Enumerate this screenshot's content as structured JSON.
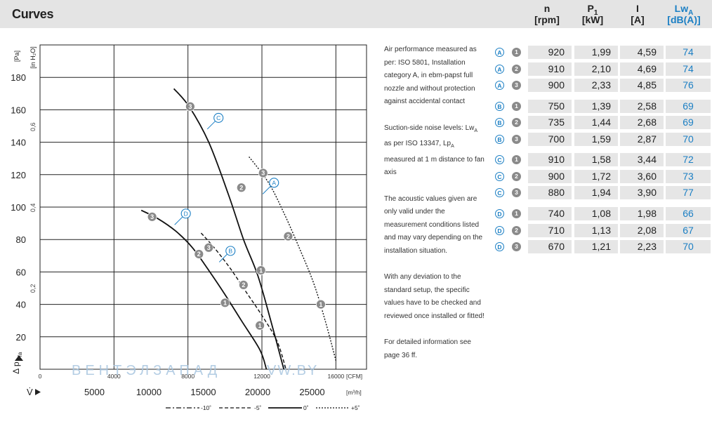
{
  "header": {
    "title": "Curves",
    "columns": [
      {
        "name": "n",
        "unit": "[rpm]",
        "highlight": false
      },
      {
        "name": "P",
        "sub": "1",
        "unit": "[kW]",
        "highlight": false
      },
      {
        "name": "I",
        "unit": "[A]",
        "highlight": false
      },
      {
        "name": "Lw",
        "sub": "A",
        "unit": "[dB(A)]",
        "highlight": true
      }
    ]
  },
  "notes": {
    "paragraphs": [
      "Air performance measured as per: ISO 5801, Installation category A, in ebm-papst full nozzle and without protection against accidental contact",
      "Suction-side noise levels: Lw_A as per ISO 13347, Lp_A measured at 1 m distance to fan axis",
      "The acoustic values given are only valid under the measurement conditions listed and may vary depending on the installation situation.",
      "With any deviation to the standard setup, the specific values have to be checked and reviewed once installed or fitted!",
      "For detailed information see page 36 ff."
    ]
  },
  "table": {
    "rows": [
      {
        "curve": "A",
        "point": "1",
        "n": "920",
        "p1": "1,99",
        "i": "4,59",
        "lwa": "74"
      },
      {
        "curve": "A",
        "point": "2",
        "n": "910",
        "p1": "2,10",
        "i": "4,69",
        "lwa": "74"
      },
      {
        "curve": "A",
        "point": "3",
        "n": "900",
        "p1": "2,33",
        "i": "4,85",
        "lwa": "76"
      },
      {
        "curve": "B",
        "point": "1",
        "n": "750",
        "p1": "1,39",
        "i": "2,58",
        "lwa": "69"
      },
      {
        "curve": "B",
        "point": "2",
        "n": "735",
        "p1": "1,44",
        "i": "2,68",
        "lwa": "69"
      },
      {
        "curve": "B",
        "point": "3",
        "n": "700",
        "p1": "1,59",
        "i": "2,87",
        "lwa": "70"
      },
      {
        "curve": "C",
        "point": "1",
        "n": "910",
        "p1": "1,58",
        "i": "3,44",
        "lwa": "72"
      },
      {
        "curve": "C",
        "point": "2",
        "n": "900",
        "p1": "1,72",
        "i": "3,60",
        "lwa": "73"
      },
      {
        "curve": "C",
        "point": "3",
        "n": "880",
        "p1": "1,94",
        "i": "3,90",
        "lwa": "77"
      },
      {
        "curve": "D",
        "point": "1",
        "n": "740",
        "p1": "1,08",
        "i": "1,98",
        "lwa": "66"
      },
      {
        "curve": "D",
        "point": "2",
        "n": "710",
        "p1": "1,13",
        "i": "2,08",
        "lwa": "67"
      },
      {
        "curve": "D",
        "point": "3",
        "n": "670",
        "p1": "1,21",
        "i": "2,23",
        "lwa": "70"
      }
    ]
  },
  "colors": {
    "accent": "#1b7fc4",
    "header_bg": "#e4e4e4",
    "cell_bg": "#e6e6e6",
    "point_marker": "#8a8a8a",
    "watermark": "#a9c6e0"
  },
  "chart_data": {
    "type": "line",
    "title": "",
    "xlabel": "V̇",
    "x_unit": "[m³/h]",
    "x2_unit": "[CFM]",
    "ylabel": "Δ p_fa",
    "y_unit": "[Pa]",
    "y2_unit": "[in H2O]",
    "xlim": [
      0,
      30000
    ],
    "ylim": [
      0,
      200
    ],
    "x_ticks": [
      {
        "value": 5000,
        "label": "5000"
      },
      {
        "value": 10000,
        "label": "10000"
      },
      {
        "value": 15000,
        "label": "15000"
      },
      {
        "value": 20000,
        "label": "20000"
      },
      {
        "value": 25000,
        "label": "25000"
      }
    ],
    "x2_ticks": [
      {
        "value": 0,
        "label": "0"
      },
      {
        "value": 4000,
        "label": "4000"
      },
      {
        "value": 8000,
        "label": "8000"
      },
      {
        "value": 12000,
        "label": "12000"
      },
      {
        "value": 16000,
        "label": "16000"
      }
    ],
    "y_ticks": [
      {
        "value": 20,
        "label": "20"
      },
      {
        "value": 40,
        "label": "40"
      },
      {
        "value": 60,
        "label": "60"
      },
      {
        "value": 80,
        "label": "80"
      },
      {
        "value": 100,
        "label": "100"
      },
      {
        "value": 120,
        "label": "120"
      },
      {
        "value": 140,
        "label": "140"
      },
      {
        "value": 160,
        "label": "160"
      },
      {
        "value": 180,
        "label": "180"
      }
    ],
    "y2_ticks": [
      {
        "value": 0.2,
        "label": "0,2"
      },
      {
        "value": 0.4,
        "label": "0,4"
      },
      {
        "value": 0.6,
        "label": "0,6"
      }
    ],
    "grid": true,
    "series": [
      {
        "name": "A",
        "style": "dotted",
        "line": [
          [
            19200,
            131
          ],
          [
            21000,
            115
          ],
          [
            22500,
            95
          ],
          [
            24000,
            72
          ],
          [
            25200,
            52
          ],
          [
            26200,
            30
          ],
          [
            27200,
            5
          ]
        ],
        "points": [
          {
            "label": "1",
            "x": 25800,
            "y": 40
          },
          {
            "label": "2",
            "x": 22800,
            "y": 82
          },
          {
            "label": "3",
            "x": 20500,
            "y": 121
          }
        ],
        "label_pos": [
          21500,
          115
        ]
      },
      {
        "name": "B",
        "style": "dashed",
        "line": [
          [
            14800,
            84
          ],
          [
            16000,
            75
          ],
          [
            17500,
            62
          ],
          [
            19000,
            47
          ],
          [
            20500,
            32
          ],
          [
            21800,
            17
          ],
          [
            22600,
            0
          ]
        ],
        "points": [
          {
            "label": "1",
            "x": 20200,
            "y": 27
          },
          {
            "label": "2",
            "x": 18700,
            "y": 52
          },
          {
            "label": "3",
            "x": 15500,
            "y": 75
          }
        ],
        "label_pos": [
          17500,
          73
        ]
      },
      {
        "name": "C",
        "style": "solid",
        "line": [
          [
            12300,
            173
          ],
          [
            13700,
            162
          ],
          [
            15500,
            140
          ],
          [
            17300,
            108
          ],
          [
            18700,
            80
          ],
          [
            20000,
            58
          ],
          [
            21200,
            30
          ],
          [
            22400,
            0
          ]
        ],
        "points": [
          {
            "label": "1",
            "x": 20300,
            "y": 61
          },
          {
            "label": "2",
            "x": 18500,
            "y": 112
          },
          {
            "label": "3",
            "x": 13800,
            "y": 162
          }
        ],
        "label_pos": [
          16400,
          155
        ]
      },
      {
        "name": "D",
        "style": "solid",
        "line": [
          [
            9300,
            98
          ],
          [
            10800,
            93
          ],
          [
            12500,
            85
          ],
          [
            14000,
            75
          ],
          [
            15500,
            61
          ],
          [
            17000,
            46
          ],
          [
            18500,
            30
          ],
          [
            20200,
            12
          ],
          [
            20800,
            0
          ]
        ],
        "points": [
          {
            "label": "1",
            "x": 17000,
            "y": 41
          },
          {
            "label": "2",
            "x": 14600,
            "y": 71
          },
          {
            "label": "3",
            "x": 10300,
            "y": 94
          }
        ],
        "label_pos": [
          13400,
          96
        ]
      }
    ],
    "legend": [
      {
        "style": "dash-dot",
        "label": "-10˚"
      },
      {
        "style": "dashed",
        "label": "-5˚"
      },
      {
        "style": "solid",
        "label": "0˚"
      },
      {
        "style": "dotted",
        "label": "+5˚"
      }
    ],
    "watermark": {
      "left": "ВЕНТЭЛЗАПАД",
      "right": "VW.BY"
    }
  }
}
